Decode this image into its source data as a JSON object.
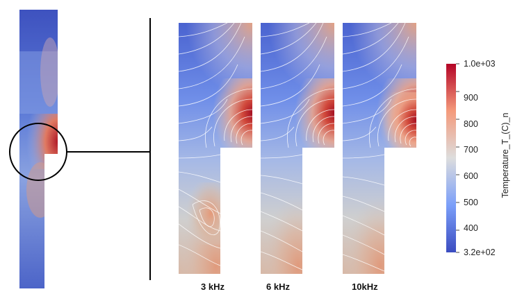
{
  "panels": [
    {
      "label": "3 kHz"
    },
    {
      "label": "6 kHz"
    },
    {
      "label": "10kHz"
    }
  ],
  "colorbar": {
    "title": "Temperature_T_(C)_n",
    "min": 320,
    "max": 1000,
    "ticks": [
      {
        "value": 1000,
        "label": "1.0e+03"
      },
      {
        "value": 900,
        "label": "900"
      },
      {
        "value": 800,
        "label": "800"
      },
      {
        "value": 700,
        "label": "700"
      },
      {
        "value": 600,
        "label": "600"
      },
      {
        "value": 500,
        "label": "500"
      },
      {
        "value": 400,
        "label": "400"
      },
      {
        "value": 320,
        "label": "3.2e+02"
      }
    ],
    "colormap": [
      "#3b4cc0",
      "#7b9ff9",
      "#dddddd",
      "#f49a7b",
      "#b40426"
    ]
  }
}
